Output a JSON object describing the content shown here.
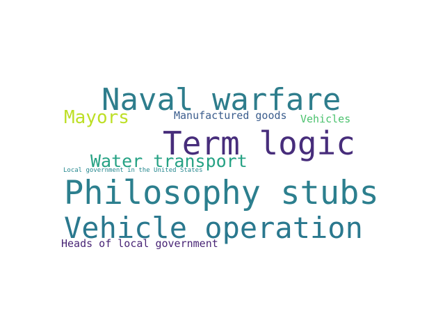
{
  "words": [
    {
      "id": "w-naval",
      "text": "Naval warfare",
      "color": "#2e7d8c"
    },
    {
      "id": "w-term",
      "text": "Term logic",
      "color": "#472d7b"
    },
    {
      "id": "w-philosophy",
      "text": "Philosophy stubs",
      "color": "#2c7f8e"
    },
    {
      "id": "w-vehicleop",
      "text": "Vehicle operation",
      "color": "#2a788e"
    },
    {
      "id": "w-water",
      "text": "Water transport",
      "color": "#26a284"
    },
    {
      "id": "w-mayors",
      "text": "Mayors",
      "color": "#bddf26"
    },
    {
      "id": "w-manufac",
      "text": "Manufactured goods",
      "color": "#3b5d8d"
    },
    {
      "id": "w-vehicles",
      "text": "Vehicles",
      "color": "#4ac16d"
    },
    {
      "id": "w-localgov",
      "text": "Local government in the United States",
      "color": "#24878e"
    },
    {
      "id": "w-heads",
      "text": "Heads of local government",
      "color": "#482475"
    }
  ]
}
